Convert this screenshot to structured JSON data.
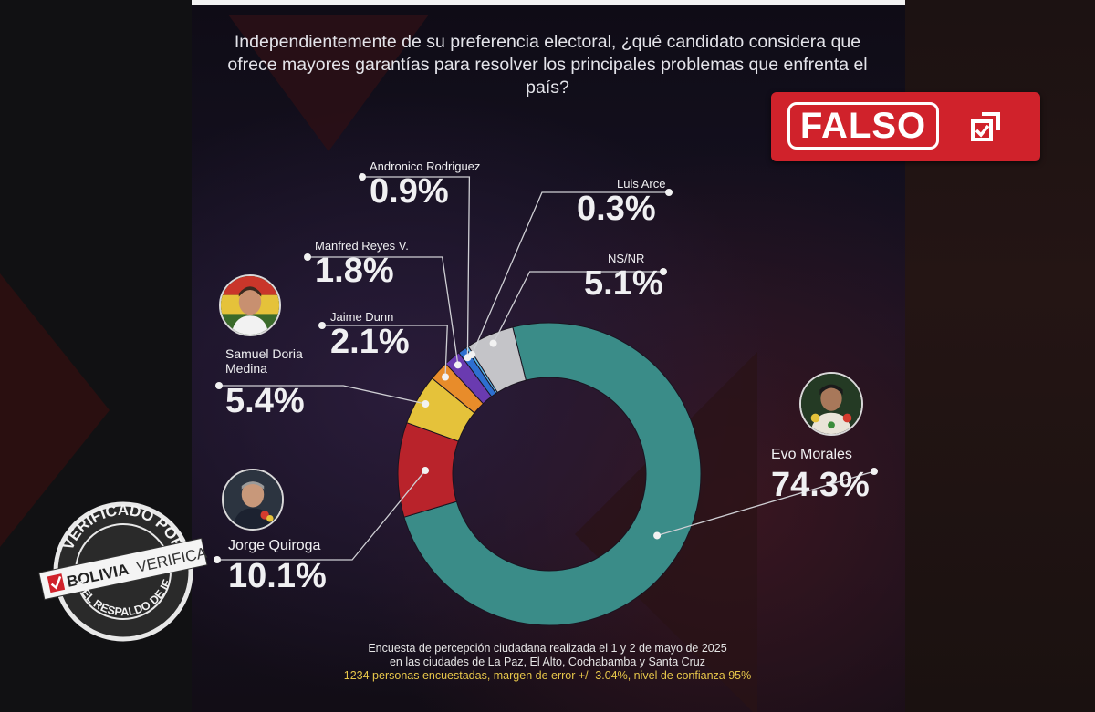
{
  "question": "Independientemente de su preferencia electoral, ¿qué candidato considera que ofrece mayores garantías para resolver los principales problemas que enfrenta el país?",
  "stamp": {
    "label": "FALSO",
    "color": "#d0222b",
    "icon": "external-check-icon"
  },
  "chart_data": {
    "type": "pie",
    "title": "Independientemente de su preferencia electoral, ¿qué candidato considera que ofrece mayores garantías para resolver los principales problemas que enfrenta el país?",
    "style": "donut",
    "slices": [
      {
        "label": "Evo Morales",
        "value": 74.3,
        "display": "74.3%",
        "color": "#3a8c88"
      },
      {
        "label": "Jorge Quiroga",
        "value": 10.1,
        "display": "10.1%",
        "color": "#b9232b"
      },
      {
        "label": "Samuel Doria Medina",
        "value": 5.4,
        "display": "5.4%",
        "color": "#e5c23a"
      },
      {
        "label": "Jaime Dunn",
        "value": 2.1,
        "display": "2.1%",
        "color": "#e88c2a"
      },
      {
        "label": "Manfred Reyes V.",
        "value": 1.8,
        "display": "1.8%",
        "color": "#6a3bb0"
      },
      {
        "label": "Andronico Rodriguez",
        "value": 0.9,
        "display": "0.9%",
        "color": "#2e6fd0"
      },
      {
        "label": "Luis Arce",
        "value": 0.3,
        "display": "0.3%",
        "color": "#5fb8e8"
      },
      {
        "label": "NS/NR",
        "value": 5.1,
        "display": "5.1%",
        "color": "#c4c4c8"
      }
    ]
  },
  "labels": {
    "andronico": {
      "name": "Andronico Rodriguez",
      "pct": "0.9%"
    },
    "luis": {
      "name": "Luis Arce",
      "pct": "0.3%"
    },
    "manfred": {
      "name": "Manfred Reyes V.",
      "pct": "1.8%"
    },
    "nsnr": {
      "name": "NS/NR",
      "pct": "5.1%"
    },
    "jaime": {
      "name": "Jaime Dunn",
      "pct": "2.1%"
    },
    "samuel": {
      "name1": "Samuel Doria",
      "name2": "Medina",
      "pct": "5.4%"
    },
    "jorge": {
      "name": "Jorge Quiroga",
      "pct": "10.1%"
    },
    "evo": {
      "name": "Evo Morales",
      "pct": "74.3%"
    }
  },
  "footer": {
    "line1": "Encuesta de percepción ciudadana realizada el 1 y 2 de mayo de 2025",
    "line2": "en las ciudades de La Paz, El Alto, Cochabamba y Santa Cruz",
    "line3": "1234 personas encuestadas, margen de error +/- 3.04%, nivel de confianza 95%"
  },
  "seal": {
    "top_text": "VERIFICADO POR",
    "brand1": "BOLIVIA",
    "brand2": "VERIFICA",
    "bottom_text": "CON EL RESPALDO DE IFCN"
  }
}
